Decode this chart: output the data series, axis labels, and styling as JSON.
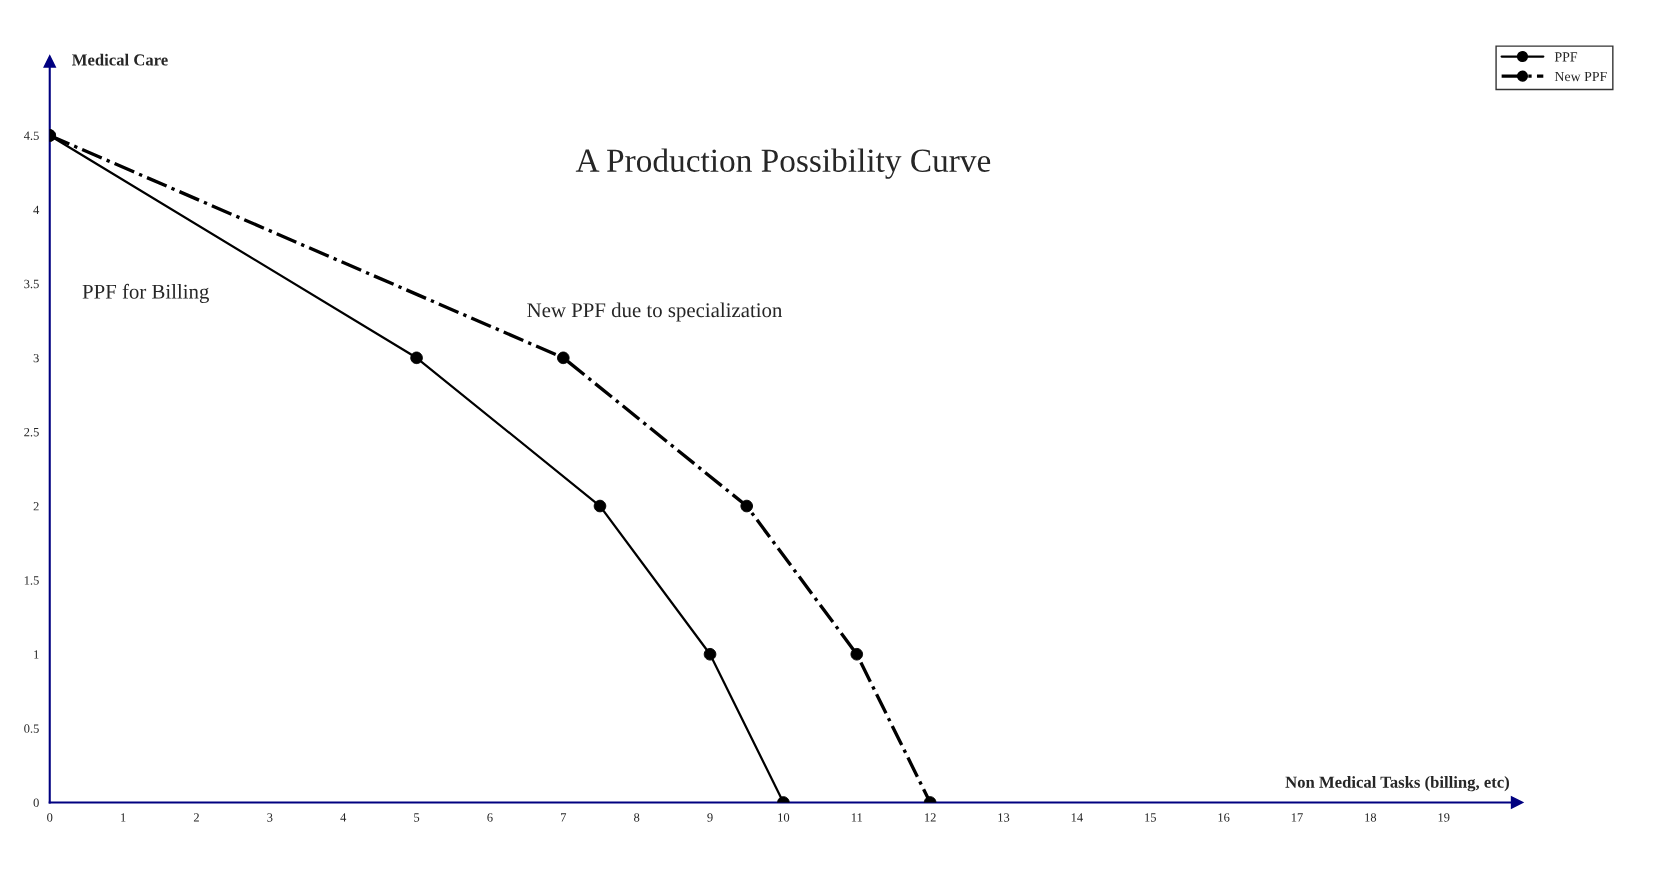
{
  "chart_data": {
    "type": "line",
    "title": "A Production Possibility Curve",
    "xlabel": "Non Medical Tasks (billing, etc)",
    "ylabel": "Medical Care",
    "series": [
      {
        "name": "PPF",
        "color": "#000000",
        "line_style": "solid",
        "x": [
          0,
          5,
          7.5,
          9,
          10
        ],
        "values": [
          4.5,
          3,
          2,
          1,
          0
        ]
      },
      {
        "name": "New PPF",
        "color": "#000000",
        "line_style": "dashdot",
        "x": [
          0,
          7,
          9.5,
          11,
          12
        ],
        "values": [
          4.5,
          3,
          2,
          1,
          0
        ]
      }
    ],
    "annotations": [
      "PPF for Billing",
      "New PPF due to specialization"
    ],
    "marker": "circle",
    "grid": false,
    "legend": "top right",
    "xlim": [
      0,
      20
    ],
    "xticks": [
      0,
      1,
      2,
      3,
      4,
      5,
      6,
      7,
      8,
      9,
      10,
      11,
      12,
      13,
      14,
      15,
      16,
      17,
      18,
      19
    ],
    "ylim": [
      0,
      5
    ],
    "yticks": [
      0,
      0.5,
      1,
      1.5,
      2,
      2.5,
      3,
      3.5,
      4,
      4.5
    ]
  }
}
